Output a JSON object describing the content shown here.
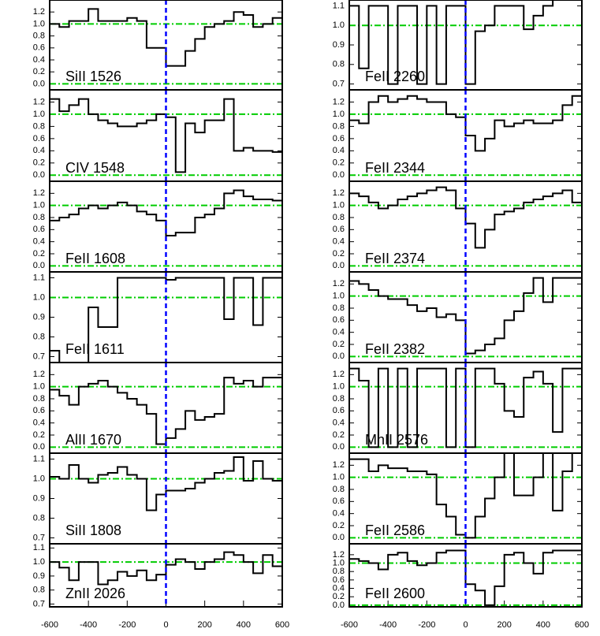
{
  "chart_data": [
    {
      "type": "step",
      "label": "SiII 1526",
      "color": "#000000",
      "hline_color": "#00cc00",
      "vline_color": "#0000ff",
      "hlines": [
        1,
        0
      ],
      "vline": 0,
      "xlim": [
        -600,
        600
      ],
      "ylim": [
        -0.1,
        1.4
      ],
      "yticks": [
        {
          "value": 0,
          "label": "0.0"
        },
        0.2,
        0.4,
        0.6,
        0.8,
        {
          "value": 1,
          "label": "1.0"
        },
        1.2
      ],
      "x": [
        -575,
        -525,
        -475,
        -425,
        -375,
        -325,
        -275,
        -225,
        -175,
        -125,
        -75,
        -25,
        25,
        75,
        125,
        175,
        225,
        275,
        325,
        375,
        425,
        475,
        525,
        575
      ],
      "values": [
        1.0,
        0.95,
        1.05,
        1.05,
        1.25,
        1.05,
        1.05,
        1.05,
        1.1,
        1.05,
        0.6,
        0.6,
        0.3,
        0.3,
        0.55,
        0.75,
        0.95,
        1.0,
        1.05,
        1.2,
        1.15,
        0.95,
        1.0,
        1.1
      ]
    },
    {
      "type": "step",
      "label": "CIV 1548",
      "color": "#000000",
      "hline_color": "#00cc00",
      "vline_color": "#0000ff",
      "hlines": [
        1,
        0
      ],
      "vline": 0,
      "xlim": [
        -600,
        600
      ],
      "ylim": [
        -0.1,
        1.4
      ],
      "yticks": [
        {
          "value": 0,
          "label": "0.0"
        },
        0.2,
        0.4,
        0.6,
        0.8,
        {
          "value": 1,
          "label": "1.0"
        },
        1.2
      ],
      "x": [
        -575,
        -525,
        -475,
        -425,
        -375,
        -325,
        -275,
        -225,
        -175,
        -125,
        -75,
        -25,
        25,
        75,
        125,
        175,
        225,
        275,
        325,
        375,
        425,
        475,
        525,
        575
      ],
      "values": [
        1.25,
        1.05,
        1.15,
        1.25,
        1.0,
        0.9,
        0.85,
        0.8,
        0.8,
        0.85,
        0.9,
        1.0,
        0.95,
        0.05,
        0.85,
        0.7,
        0.9,
        0.9,
        1.25,
        0.4,
        0.45,
        0.4,
        0.4,
        0.38
      ]
    },
    {
      "type": "step",
      "label": "FeII 1608",
      "color": "#000000",
      "hline_color": "#00cc00",
      "vline_color": "#0000ff",
      "hlines": [
        1,
        0
      ],
      "vline": 0,
      "xlim": [
        -600,
        600
      ],
      "ylim": [
        -0.1,
        1.4
      ],
      "yticks": [
        {
          "value": 0,
          "label": "0.0"
        },
        0.2,
        0.4,
        0.6,
        0.8,
        {
          "value": 1,
          "label": "1.0"
        },
        1.2
      ],
      "x": [
        -575,
        -525,
        -475,
        -425,
        -375,
        -325,
        -275,
        -225,
        -175,
        -125,
        -75,
        -25,
        25,
        75,
        125,
        175,
        225,
        275,
        325,
        375,
        425,
        475,
        525,
        575
      ],
      "values": [
        0.75,
        0.8,
        0.85,
        0.95,
        1.0,
        0.95,
        1.0,
        1.05,
        1.0,
        0.9,
        0.85,
        0.75,
        0.5,
        0.55,
        0.55,
        0.8,
        0.85,
        0.95,
        1.2,
        1.25,
        1.15,
        1.1,
        1.1,
        1.08
      ]
    },
    {
      "type": "step",
      "label": "FeII 1611",
      "color": "#000000",
      "hline_color": "#00cc00",
      "vline_color": "#0000ff",
      "hlines": [
        1
      ],
      "vline": 0,
      "xlim": [
        -600,
        600
      ],
      "ylim": [
        0.67,
        1.13
      ],
      "yticks": [
        0.7,
        0.8,
        0.9,
        {
          "value": 1,
          "label": "1.0"
        },
        1.1
      ],
      "x": [
        -575,
        -525,
        -475,
        -425,
        -375,
        -325,
        -275,
        -225,
        -175,
        -125,
        -75,
        -25,
        25,
        75,
        125,
        175,
        225,
        275,
        325,
        375,
        425,
        475,
        525,
        575
      ],
      "values": [
        0.73,
        0.67,
        0.67,
        0.67,
        0.95,
        0.85,
        0.85,
        1.1,
        1.1,
        1.1,
        1.1,
        1.1,
        1.09,
        1.1,
        1.1,
        1.1,
        1.1,
        1.1,
        0.89,
        1.1,
        1.1,
        0.86,
        1.1,
        1.1
      ]
    },
    {
      "type": "step",
      "label": "AlII 1670",
      "color": "#000000",
      "hline_color": "#00cc00",
      "vline_color": "#0000ff",
      "hlines": [
        1,
        0
      ],
      "vline": 0,
      "xlim": [
        -600,
        600
      ],
      "ylim": [
        -0.1,
        1.4
      ],
      "yticks": [
        {
          "value": 0,
          "label": "0.0"
        },
        0.2,
        0.4,
        0.6,
        0.8,
        {
          "value": 1,
          "label": "1.0"
        },
        1.2
      ],
      "x": [
        -575,
        -525,
        -475,
        -425,
        -375,
        -325,
        -275,
        -225,
        -175,
        -125,
        -75,
        -25,
        25,
        75,
        125,
        175,
        225,
        275,
        325,
        375,
        425,
        475,
        525,
        575
      ],
      "values": [
        0.95,
        0.85,
        0.7,
        1.0,
        1.05,
        1.1,
        1.0,
        0.9,
        0.8,
        0.7,
        0.55,
        0.05,
        0.15,
        0.3,
        0.6,
        0.45,
        0.5,
        0.55,
        1.15,
        1.05,
        1.1,
        1.0,
        1.15,
        1.15
      ]
    },
    {
      "type": "step",
      "label": "SiII 1808",
      "color": "#000000",
      "hline_color": "#00cc00",
      "vline_color": "#0000ff",
      "hlines": [
        1
      ],
      "vline": 0,
      "xlim": [
        -600,
        600
      ],
      "ylim": [
        0.67,
        1.13
      ],
      "yticks": [
        0.7,
        0.8,
        0.9,
        {
          "value": 1,
          "label": "1.0"
        },
        1.1
      ],
      "x": [
        -575,
        -525,
        -475,
        -425,
        -375,
        -325,
        -275,
        -225,
        -175,
        -125,
        -75,
        -25,
        25,
        75,
        125,
        175,
        225,
        275,
        325,
        375,
        425,
        475,
        525,
        575
      ],
      "values": [
        1.01,
        1.0,
        1.07,
        1.0,
        0.98,
        1.02,
        1.03,
        1.06,
        1.02,
        1.0,
        0.84,
        0.92,
        0.94,
        0.94,
        0.95,
        0.98,
        1.0,
        1.03,
        1.04,
        1.11,
        0.99,
        1.09,
        1.0,
        0.99
      ]
    },
    {
      "type": "step",
      "label": "ZnII 2026",
      "color": "#000000",
      "hline_color": "#00cc00",
      "vline_color": "#0000ff",
      "hlines": [
        1
      ],
      "vline": 0,
      "xlim": [
        -600,
        600
      ],
      "ylim": [
        0.68,
        1.13
      ],
      "yticks": [
        0.7,
        0.8,
        0.9,
        {
          "value": 1,
          "label": "1.0"
        },
        1.1
      ],
      "xticks": [
        -600,
        -400,
        -200,
        0,
        200,
        400,
        600
      ],
      "x": [
        -575,
        -525,
        -475,
        -425,
        -375,
        -325,
        -275,
        -225,
        -175,
        -125,
        -75,
        -25,
        25,
        75,
        125,
        175,
        225,
        275,
        325,
        375,
        425,
        475,
        525,
        575
      ],
      "values": [
        1.0,
        0.96,
        0.87,
        1.0,
        1.0,
        0.84,
        0.87,
        0.93,
        0.9,
        0.94,
        0.87,
        0.91,
        0.98,
        1.02,
        1.0,
        0.95,
        1.0,
        1.02,
        1.07,
        1.05,
        1.0,
        0.92,
        1.05,
        0.97
      ]
    },
    {
      "type": "step",
      "label": "FeII 2260",
      "color": "#000000",
      "hline_color": "#00cc00",
      "vline_color": "#0000ff",
      "hlines": [
        1
      ],
      "vline": 0,
      "xlim": [
        -600,
        600
      ],
      "ylim": [
        0.67,
        1.13
      ],
      "yticks": [
        0.7,
        0.8,
        0.9,
        {
          "value": 1,
          "label": "1.0"
        },
        1.1
      ],
      "x": [
        -575,
        -525,
        -475,
        -425,
        -375,
        -325,
        -275,
        -225,
        -175,
        -125,
        -75,
        -25,
        25,
        75,
        125,
        175,
        225,
        275,
        325,
        375,
        425,
        475,
        525,
        575
      ],
      "values": [
        1.1,
        0.78,
        1.1,
        1.1,
        0.7,
        1.1,
        1.1,
        0.7,
        1.1,
        0.7,
        1.1,
        1.1,
        0.7,
        0.97,
        1.0,
        1.1,
        1.1,
        1.1,
        0.98,
        1.05,
        1.1,
        1.13,
        1.13,
        1.13
      ]
    },
    {
      "type": "step",
      "label": "FeII 2344",
      "color": "#000000",
      "hline_color": "#00cc00",
      "vline_color": "#0000ff",
      "hlines": [
        1,
        0
      ],
      "vline": 0,
      "xlim": [
        -600,
        600
      ],
      "ylim": [
        -0.1,
        1.4
      ],
      "yticks": [
        {
          "value": 0,
          "label": "0.0"
        },
        0.2,
        0.4,
        0.6,
        0.8,
        {
          "value": 1,
          "label": "1.0"
        },
        1.2
      ],
      "x": [
        -575,
        -525,
        -475,
        -425,
        -375,
        -325,
        -275,
        -225,
        -175,
        -125,
        -75,
        -25,
        25,
        75,
        125,
        175,
        225,
        275,
        325,
        375,
        425,
        475,
        525,
        575
      ],
      "values": [
        0.9,
        0.85,
        1.2,
        1.3,
        1.2,
        1.25,
        1.3,
        1.25,
        1.2,
        1.2,
        1.0,
        0.95,
        0.65,
        0.4,
        0.6,
        0.9,
        0.8,
        0.85,
        0.9,
        0.85,
        0.85,
        0.9,
        1.15,
        1.3
      ]
    },
    {
      "type": "step",
      "label": "FeII 2374",
      "color": "#000000",
      "hline_color": "#00cc00",
      "vline_color": "#0000ff",
      "hlines": [
        1,
        0
      ],
      "vline": 0,
      "xlim": [
        -600,
        600
      ],
      "ylim": [
        -0.1,
        1.4
      ],
      "yticks": [
        {
          "value": 0,
          "label": "0.0"
        },
        0.2,
        0.4,
        0.6,
        0.8,
        {
          "value": 1,
          "label": "1.0"
        },
        1.2
      ],
      "x": [
        -575,
        -525,
        -475,
        -425,
        -375,
        -325,
        -275,
        -225,
        -175,
        -125,
        -75,
        -25,
        25,
        75,
        125,
        175,
        225,
        275,
        325,
        375,
        425,
        475,
        525,
        575
      ],
      "values": [
        1.2,
        1.15,
        1.05,
        0.95,
        1.0,
        1.1,
        1.15,
        1.2,
        1.25,
        1.3,
        1.25,
        0.95,
        0.7,
        0.3,
        0.6,
        0.85,
        0.9,
        0.95,
        1.05,
        1.1,
        1.15,
        1.2,
        1.25,
        1.05
      ]
    },
    {
      "type": "step",
      "label": "FeII 2382",
      "color": "#000000",
      "hline_color": "#00cc00",
      "vline_color": "#0000ff",
      "hlines": [
        1,
        0
      ],
      "vline": 0,
      "xlim": [
        -600,
        600
      ],
      "ylim": [
        -0.1,
        1.4
      ],
      "yticks": [
        {
          "value": 0,
          "label": "0.0"
        },
        0.2,
        0.4,
        0.6,
        0.8,
        {
          "value": 1,
          "label": "1.0"
        },
        1.2
      ],
      "x": [
        -575,
        -525,
        -475,
        -425,
        -375,
        -325,
        -275,
        -225,
        -175,
        -125,
        -75,
        -25,
        25,
        75,
        125,
        175,
        225,
        275,
        325,
        375,
        425,
        475,
        525,
        575
      ],
      "values": [
        1.25,
        1.2,
        1.1,
        1.0,
        0.95,
        0.95,
        0.85,
        0.75,
        0.8,
        0.65,
        0.7,
        0.6,
        0.05,
        0.1,
        0.2,
        0.3,
        0.6,
        0.75,
        1.05,
        1.3,
        0.9,
        1.3,
        1.3,
        1.3
      ]
    },
    {
      "type": "step",
      "label": "MnII 2576",
      "color": "#000000",
      "hline_color": "#00cc00",
      "vline_color": "#0000ff",
      "hlines": [
        1,
        0
      ],
      "vline": 0,
      "xlim": [
        -600,
        600
      ],
      "ylim": [
        -0.1,
        1.4
      ],
      "yticks": [
        {
          "value": 0,
          "label": "0.0"
        },
        0.2,
        0.4,
        0.6,
        0.8,
        {
          "value": 1,
          "label": "1.0"
        },
        1.2
      ],
      "x": [
        -575,
        -525,
        -475,
        -425,
        -375,
        -325,
        -275,
        -225,
        -175,
        -125,
        -75,
        -25,
        25,
        75,
        125,
        175,
        225,
        275,
        325,
        375,
        425,
        475,
        525,
        575
      ],
      "values": [
        1.3,
        1.1,
        0.0,
        1.3,
        0.0,
        1.3,
        0.0,
        1.3,
        1.3,
        1.3,
        0.0,
        1.3,
        0.0,
        1.3,
        1.3,
        1.05,
        0.6,
        0.5,
        1.15,
        1.25,
        1.05,
        0.25,
        1.3,
        1.3
      ]
    },
    {
      "type": "step",
      "label": "FeII 2586",
      "color": "#000000",
      "hline_color": "#00cc00",
      "vline_color": "#0000ff",
      "hlines": [
        1,
        0
      ],
      "vline": 0,
      "xlim": [
        -600,
        600
      ],
      "ylim": [
        -0.1,
        1.4
      ],
      "yticks": [
        {
          "value": 0,
          "label": "0.0"
        },
        0.2,
        0.4,
        0.6,
        0.8,
        {
          "value": 1,
          "label": "1.0"
        },
        1.2
      ],
      "x": [
        -575,
        -525,
        -475,
        -425,
        -375,
        -325,
        -275,
        -225,
        -175,
        -125,
        -75,
        -25,
        25,
        75,
        125,
        175,
        225,
        275,
        325,
        375,
        425,
        475,
        525,
        575
      ],
      "values": [
        1.3,
        1.3,
        1.1,
        1.2,
        1.15,
        1.15,
        1.1,
        1.1,
        1.05,
        0.55,
        0.35,
        0.05,
        0.0,
        0.35,
        0.65,
        1.0,
        1.4,
        0.7,
        0.7,
        1.0,
        1.4,
        0.45,
        1.1,
        1.4
      ]
    },
    {
      "type": "step",
      "label": "FeII 2600",
      "color": "#000000",
      "hline_color": "#00cc00",
      "vline_color": "#0000ff",
      "hlines": [
        1,
        0
      ],
      "vline": 0,
      "xlim": [
        -600,
        600
      ],
      "ylim": [
        -0.04,
        1.46
      ],
      "yticks": [
        {
          "value": 0,
          "label": "0.0"
        },
        0.2,
        0.4,
        0.6,
        0.8,
        {
          "value": 1,
          "label": "1.0"
        },
        1.2
      ],
      "xticks": [
        -600,
        -400,
        -200,
        0,
        200,
        400,
        600
      ],
      "x": [
        -575,
        -525,
        -475,
        -425,
        -375,
        -325,
        -275,
        -225,
        -175,
        -125,
        -75,
        -25,
        25,
        75,
        125,
        175,
        225,
        275,
        325,
        375,
        425,
        475,
        525,
        575
      ],
      "values": [
        1.1,
        1.05,
        1.0,
        0.85,
        1.2,
        1.25,
        1.05,
        0.95,
        1.0,
        1.25,
        1.3,
        1.3,
        0.5,
        0.35,
        0.0,
        0.45,
        1.2,
        1.25,
        1.0,
        0.75,
        1.25,
        1.3,
        1.3,
        1.3
      ]
    }
  ]
}
